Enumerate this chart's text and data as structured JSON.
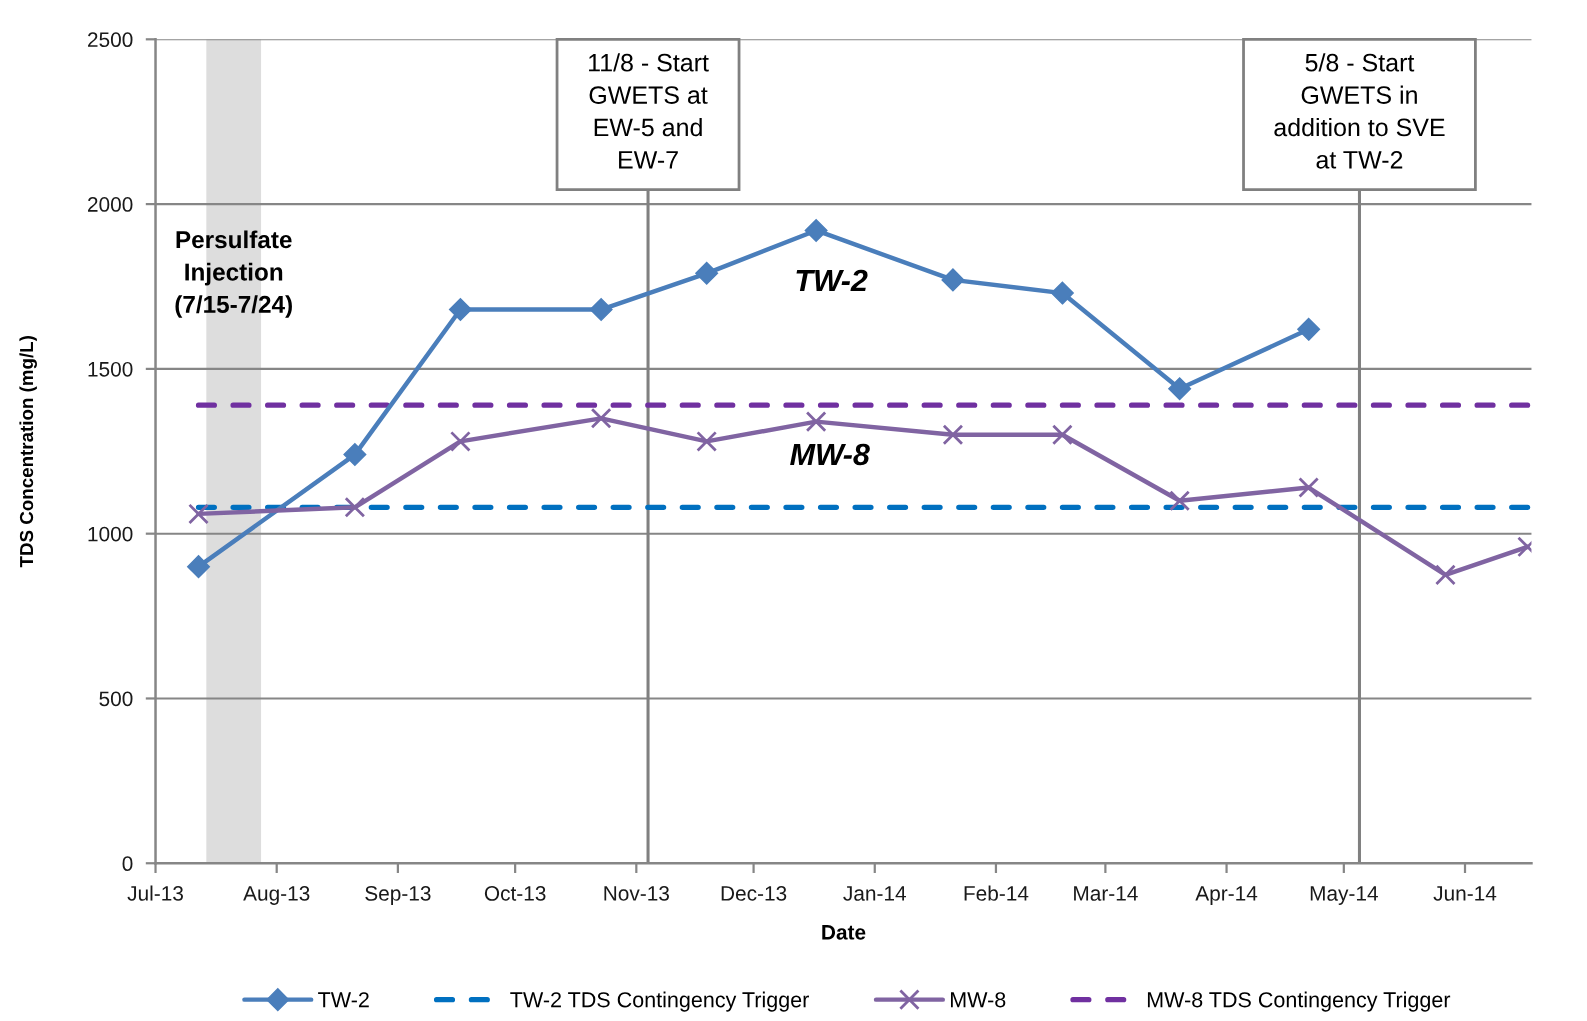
{
  "chart_data": {
    "type": "line",
    "xlabel": "Date",
    "ylabel": "TDS Concentration (mg/L)",
    "x": [
      "2013-07-12",
      "2013-08-21",
      "2013-09-17",
      "2013-10-23",
      "2013-11-19",
      "2013-12-17",
      "2014-01-21",
      "2014-02-18",
      "2014-03-20",
      "2014-04-22",
      "2014-05-27",
      "2014-06-17"
    ],
    "series": [
      {
        "name": "TW-2",
        "color": "#4a7ebb",
        "marker": "diamond",
        "line_style": "solid",
        "values": [
          900,
          1240,
          1680,
          1680,
          1790,
          1920,
          1770,
          1730,
          1440,
          1620,
          null,
          null
        ]
      },
      {
        "name": "TW-2 TDS Contingency Trigger",
        "color": "#0070c0",
        "marker": "none",
        "line_style": "dashed",
        "x": [
          "2013-07-12",
          "2014-06-17"
        ],
        "values": [
          1080,
          1080
        ]
      },
      {
        "name": "MW-8",
        "color": "#8064a2",
        "marker": "cross",
        "line_style": "solid",
        "values": [
          1060,
          1080,
          1280,
          1350,
          1280,
          1340,
          1300,
          1300,
          1100,
          1140,
          875,
          960
        ]
      },
      {
        "name": "MW-8 TDS Contingency Trigger",
        "color": "#7030a0",
        "marker": "none",
        "line_style": "dashed",
        "x": [
          "2013-07-12",
          "2014-06-17"
        ],
        "values": [
          1390,
          1390
        ]
      }
    ],
    "xlim": [
      "2013-07-01",
      "2014-06-18"
    ],
    "xticks": [
      {
        "value": "2013-07-01",
        "label": "Jul-13"
      },
      {
        "value": "2013-08-01",
        "label": "Aug-13"
      },
      {
        "value": "2013-09-01",
        "label": "Sep-13"
      },
      {
        "value": "2013-10-01",
        "label": "Oct-13"
      },
      {
        "value": "2013-11-01",
        "label": "Nov-13"
      },
      {
        "value": "2013-12-01",
        "label": "Dec-13"
      },
      {
        "value": "2014-01-01",
        "label": "Jan-14"
      },
      {
        "value": "2014-02-01",
        "label": "Feb-14"
      },
      {
        "value": "2014-03-01",
        "label": "Mar-14"
      },
      {
        "value": "2014-04-01",
        "label": "Apr-14"
      },
      {
        "value": "2014-05-01",
        "label": "May-14"
      },
      {
        "value": "2014-06-01",
        "label": "Jun-14"
      }
    ],
    "ylim": [
      0,
      2500
    ],
    "yticks": [
      0,
      500,
      1000,
      1500,
      2000,
      2500
    ],
    "grid": "y",
    "legend": "bottom",
    "ref_lines": [
      {
        "axis": "x",
        "value": "2013-11-04",
        "label": "11/8 - Start\nGWETS at\nEW-5 and\nEW-7",
        "color": "#808080",
        "line_style": "solid"
      },
      {
        "axis": "x",
        "value": "2014-05-05",
        "label": "5/8 - Start\nGWETS in\naddition to SVE\nat TW-2",
        "color": "#808080",
        "line_style": "solid"
      }
    ],
    "bands": [
      {
        "axis": "x",
        "from": "2013-07-14",
        "to": "2013-07-28",
        "label": "Persulfate\nInjection\n(7/15-7/24)",
        "color": "#dddddd"
      }
    ],
    "annotations": [
      "TW-2",
      "MW-8"
    ]
  }
}
